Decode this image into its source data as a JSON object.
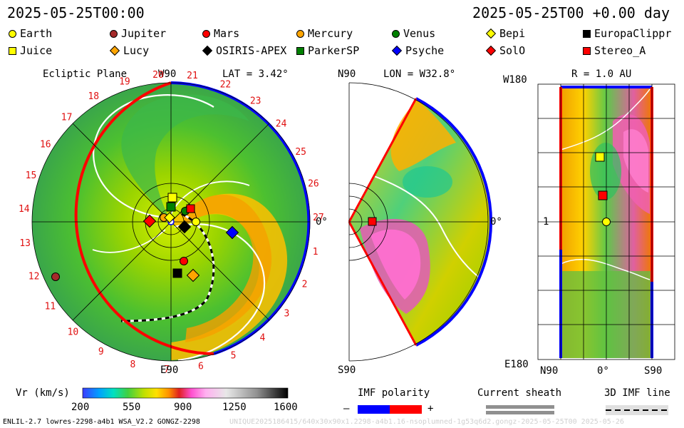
{
  "header": {
    "date_left": "2025-05-25T00:00",
    "date_right": "2025-05-25T00 +0.00 day"
  },
  "legend": [
    {
      "name": "Earth",
      "shape": "circle",
      "color": "#ffff00"
    },
    {
      "name": "Jupiter",
      "shape": "circle",
      "color": "#a52a2a"
    },
    {
      "name": "Mars",
      "shape": "circle",
      "color": "#ff0000"
    },
    {
      "name": "Mercury",
      "shape": "circle",
      "color": "#ffa500"
    },
    {
      "name": "Venus",
      "shape": "circle",
      "color": "#008000"
    },
    {
      "name": "Bepi",
      "shape": "diamond",
      "color": "#ffff00"
    },
    {
      "name": "EuropaClippr",
      "shape": "square",
      "color": "#000000"
    },
    {
      "name": "Juice",
      "shape": "square",
      "color": "#ffff00"
    },
    {
      "name": "Lucy",
      "shape": "diamond",
      "color": "#ffa500"
    },
    {
      "name": "OSIRIS-APEX",
      "shape": "diamond",
      "color": "#000000"
    },
    {
      "name": "ParkerSP",
      "shape": "square",
      "color": "#008000"
    },
    {
      "name": "Psyche",
      "shape": "diamond",
      "color": "#0000ff"
    },
    {
      "name": "SolO",
      "shape": "diamond",
      "color": "#ff0000"
    },
    {
      "name": "Stereo_A",
      "shape": "square",
      "color": "#ff0000"
    }
  ],
  "panels": {
    "ecliptic": {
      "title": "Ecliptic Plane",
      "top_label": "W90",
      "lat_label": "LAT = 3.42°",
      "bottom_label": "E90",
      "right_label": "0°",
      "ticks": [
        "20",
        "21",
        "22",
        "23",
        "24",
        "25",
        "26",
        "27",
        "1",
        "2",
        "3",
        "4",
        "5",
        "6",
        "7",
        "8",
        "9",
        "10",
        "11",
        "12",
        "13",
        "14",
        "15",
        "16",
        "17",
        "18",
        "19"
      ]
    },
    "meridional": {
      "top_left": "N90",
      "lon_label": "LON = W32.8°",
      "bottom_left": "S90",
      "right_label": "0°"
    },
    "radial": {
      "r_label": "R = 1.0 AU",
      "top_left": "W180",
      "bottom_left": "E180",
      "mid_left": "1",
      "bottom_ticks": [
        "N90",
        "0°",
        "S90"
      ]
    }
  },
  "colorbar": {
    "title": "Vr (km/s)",
    "ticks": [
      "200",
      "550",
      "900",
      "1250",
      "1600"
    ]
  },
  "imf": {
    "title": "IMF polarity",
    "minus": "–",
    "plus": "+",
    "neg_color": "#0000ff",
    "pos_color": "#ff0000"
  },
  "sheath": {
    "title": "Current sheath"
  },
  "imf3d": {
    "title": "3D IMF line"
  },
  "footer": {
    "left": "ENLIL-2.7 lowres-2298-a4b1 WSA_V2.2 GONGZ-2298",
    "right": "UNIQUE2025186415/640x30x90x1.2298-a4b1.16-nsoplumned-1g53q6d2.gongz-2025-05-25T00   2025-05-26"
  }
}
